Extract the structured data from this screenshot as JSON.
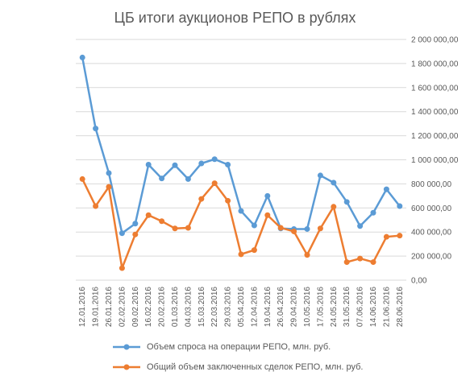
{
  "chart_data": {
    "type": "line",
    "title": "ЦБ итоги аукционов РЕПО в рублях",
    "xlabel": "",
    "ylabel": "",
    "ylim": [
      0,
      2000000
    ],
    "y_ticks": [
      0,
      200000,
      400000,
      600000,
      800000,
      1000000,
      1200000,
      1400000,
      1600000,
      1800000,
      2000000
    ],
    "y_tick_labels": [
      "0,00",
      "200 000,00",
      "400 000,00",
      "600 000,00",
      "800 000,00",
      "1 000 000,00",
      "1 200 000,00",
      "1 400 000,00",
      "1 600 000,00",
      "1 800 000,00",
      "2 000 000,00"
    ],
    "y_axis_side": "right",
    "grid": true,
    "legend_position": "bottom",
    "categories": [
      "12.01.2016",
      "19.01.2016",
      "26.01.2016",
      "02.02.2016",
      "09.02.2016",
      "16.02.2016",
      "20.02.2016",
      "01.03.2016",
      "04.03.2016",
      "15.03.2016",
      "22.03.2016",
      "29.03.2016",
      "05.04.2016",
      "12.04.2016",
      "19.04.2016",
      "26.04.2016",
      "29.04.2016",
      "10.05.2016",
      "17.05.2016",
      "24.05.2016",
      "31.05.2016",
      "07.06.2016",
      "14.06.2016",
      "21.06.2016",
      "28.06.2016"
    ],
    "series": [
      {
        "name": "Объем спроса на операции РЕПО, млн. руб.",
        "color": "#5b9bd5",
        "values": [
          1850000,
          1260000,
          890000,
          390000,
          470000,
          960000,
          845000,
          955000,
          840000,
          970000,
          1005000,
          960000,
          575000,
          455000,
          700000,
          430000,
          425000,
          425000,
          870000,
          810000,
          650000,
          450000,
          560000,
          755000,
          615000
        ]
      },
      {
        "name": "Общий объем заключенных сделок РЕПО, млн. руб.",
        "color": "#ed7d31",
        "values": [
          840000,
          615000,
          775000,
          100000,
          380000,
          540000,
          490000,
          430000,
          435000,
          675000,
          805000,
          660000,
          215000,
          250000,
          540000,
          435000,
          405000,
          210000,
          430000,
          610000,
          150000,
          180000,
          150000,
          360000,
          370000
        ]
      }
    ]
  }
}
